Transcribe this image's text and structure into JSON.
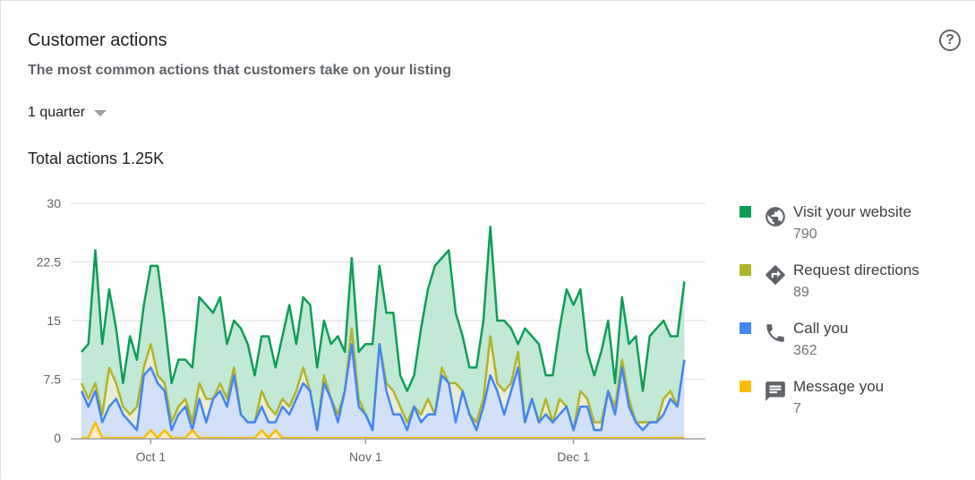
{
  "card": {
    "title": "Customer actions",
    "subtitle": "The most common actions that customers take on your listing",
    "help_icon": "help-circle-icon",
    "period_selector": {
      "selected": "1 quarter"
    },
    "total_label": "Total actions 1.25K"
  },
  "legend": [
    {
      "label": "Visit your website",
      "count": "790",
      "icon": "globe-icon",
      "color": "#0f9d58"
    },
    {
      "label": "Request directions",
      "count": "89",
      "icon": "directions-icon",
      "color": "#afb42b"
    },
    {
      "label": "Call you",
      "count": "362",
      "icon": "phone-icon",
      "color": "#4285f4"
    },
    {
      "label": "Message you",
      "count": "7",
      "icon": "message-icon",
      "color": "#fbbc04"
    }
  ],
  "chart_data": {
    "type": "area",
    "stacked": true,
    "grid": true,
    "legend_position": "right",
    "ylim": [
      0,
      30
    ],
    "y_ticks": [
      "0",
      "7.5",
      "15",
      "22.5",
      "30"
    ],
    "x_ticks": [
      "Oct 1",
      "Nov 1",
      "Dec 1"
    ],
    "x": [
      "Sep 21",
      "Sep 22",
      "Sep 23",
      "Sep 24",
      "Sep 25",
      "Sep 26",
      "Sep 27",
      "Sep 28",
      "Sep 29",
      "Sep 30",
      "Oct 1",
      "Oct 2",
      "Oct 3",
      "Oct 4",
      "Oct 5",
      "Oct 6",
      "Oct 7",
      "Oct 8",
      "Oct 9",
      "Oct 10",
      "Oct 11",
      "Oct 12",
      "Oct 13",
      "Oct 14",
      "Oct 15",
      "Oct 16",
      "Oct 17",
      "Oct 18",
      "Oct 19",
      "Oct 20",
      "Oct 21",
      "Oct 22",
      "Oct 23",
      "Oct 24",
      "Oct 25",
      "Oct 26",
      "Oct 27",
      "Oct 28",
      "Oct 29",
      "Oct 30",
      "Oct 31",
      "Nov 1",
      "Nov 2",
      "Nov 3",
      "Nov 4",
      "Nov 5",
      "Nov 6",
      "Nov 7",
      "Nov 8",
      "Nov 9",
      "Nov 10",
      "Nov 11",
      "Nov 12",
      "Nov 13",
      "Nov 14",
      "Nov 15",
      "Nov 16",
      "Nov 17",
      "Nov 18",
      "Nov 19",
      "Nov 20",
      "Nov 21",
      "Nov 22",
      "Nov 23",
      "Nov 24",
      "Nov 25",
      "Nov 26",
      "Nov 27",
      "Nov 28",
      "Nov 29",
      "Nov 30",
      "Dec 1",
      "Dec 2",
      "Dec 3",
      "Dec 4",
      "Dec 5",
      "Dec 6",
      "Dec 7",
      "Dec 8",
      "Dec 9",
      "Dec 10",
      "Dec 11",
      "Dec 12",
      "Dec 13",
      "Dec 14",
      "Dec 15",
      "Dec 16",
      "Dec 17"
    ],
    "series": [
      {
        "name": "Message you",
        "color": "#fbbc04",
        "fill": "#fdeec4",
        "values": [
          0,
          0,
          2,
          0,
          0,
          0,
          0,
          0,
          0,
          0,
          1,
          0,
          1,
          0,
          0,
          0,
          1,
          0,
          0,
          0,
          0,
          0,
          0,
          0,
          0,
          0,
          1,
          0,
          1,
          0,
          0,
          0,
          0,
          0,
          0,
          0,
          0,
          0,
          0,
          0,
          0,
          0,
          0,
          0,
          0,
          0,
          0,
          0,
          0,
          0,
          0,
          0,
          0,
          0,
          0,
          0,
          0,
          0,
          0,
          0,
          0,
          0,
          0,
          0,
          0,
          0,
          0,
          0,
          0,
          0,
          0,
          0,
          0,
          0,
          0,
          0,
          0,
          0,
          0,
          0,
          0,
          0,
          0,
          0,
          0,
          0,
          0,
          0
        ]
      },
      {
        "name": "Call you",
        "color": "#4285f4",
        "fill": "#d2e0f8",
        "values": [
          6,
          4,
          4,
          2,
          4,
          5,
          3,
          2,
          1,
          8,
          8,
          7,
          5,
          1,
          3,
          4,
          0,
          5,
          2,
          5,
          6,
          4,
          8,
          3,
          2,
          2,
          3,
          2,
          1,
          4,
          3,
          5,
          7,
          6,
          1,
          7,
          5,
          2,
          6,
          12,
          4,
          3,
          1,
          12,
          6,
          3,
          3,
          1,
          4,
          2,
          3,
          3,
          8,
          7,
          2,
          6,
          3,
          1,
          4,
          8,
          6,
          3,
          6,
          9,
          2,
          5,
          2,
          3,
          2,
          3,
          4,
          1,
          4,
          4,
          1,
          1,
          6,
          3,
          9,
          4,
          2,
          1,
          2,
          2,
          3,
          5,
          4,
          10
        ]
      },
      {
        "name": "Request directions",
        "color": "#afb42b",
        "fill": "#e9edd3",
        "values": [
          1,
          1,
          1,
          1,
          5,
          2,
          1,
          1,
          3,
          1,
          3,
          1,
          1,
          1,
          1,
          1,
          1,
          2,
          3,
          0,
          1,
          1,
          1,
          0,
          0,
          0,
          2,
          2,
          1,
          1,
          1,
          1,
          2,
          0,
          0,
          1,
          0,
          1,
          0,
          2,
          1,
          0,
          0,
          0,
          1,
          3,
          1,
          1,
          0,
          1,
          2,
          0,
          1,
          0,
          5,
          0,
          0,
          1,
          1,
          5,
          1,
          3,
          1,
          2,
          0,
          0,
          0,
          2,
          0,
          2,
          0,
          0,
          2,
          1,
          1,
          1,
          0,
          1,
          1,
          1,
          0,
          1,
          0,
          0,
          2,
          1,
          0,
          0
        ]
      },
      {
        "name": "Visit your website",
        "color": "#0f9d58",
        "fill": "#c2e9d5",
        "values": [
          4,
          7,
          17,
          9,
          10,
          7,
          3,
          10,
          6,
          8,
          10,
          14,
          8,
          5,
          6,
          5,
          7,
          11,
          12,
          11,
          11,
          7,
          6,
          11,
          10,
          6,
          7,
          9,
          6,
          8,
          13,
          6,
          9,
          11,
          8,
          7,
          7,
          10,
          5,
          9,
          6,
          9,
          11,
          10,
          9,
          10,
          4,
          4,
          4,
          11,
          14,
          19,
          14,
          17,
          9,
          7,
          6,
          7,
          10,
          14,
          8,
          9,
          7,
          1,
          12,
          8,
          10,
          3,
          6,
          9,
          15,
          16,
          13,
          6,
          6,
          9,
          9,
          3,
          8,
          7,
          11,
          4,
          11,
          12,
          10,
          7,
          9,
          10
        ]
      }
    ]
  }
}
